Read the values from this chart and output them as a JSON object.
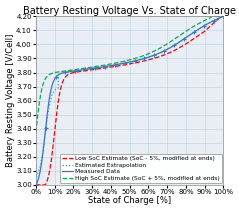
{
  "title": "Battery Resting Voltage Vs. State of Charge",
  "xlabel": "State of Charge [%]",
  "ylabel": "Battery Resting Voltage [V/Cell]",
  "xlim": [
    0,
    1.0
  ],
  "ylim": [
    3.0,
    4.2
  ],
  "yticks": [
    3.0,
    3.1,
    3.2,
    3.3,
    3.4,
    3.5,
    3.6,
    3.7,
    3.8,
    3.9,
    4.0,
    4.1,
    4.2
  ],
  "xticks": [
    0,
    0.1,
    0.2,
    0.3,
    0.4,
    0.5,
    0.6,
    0.7,
    0.8,
    0.9,
    1.0
  ],
  "colors": {
    "measured": "#4472C4",
    "extrapolation": "#00B0F0",
    "high_soc": "#00B050",
    "low_soc": "#FF0000"
  },
  "legend": [
    "Measured Data",
    "Estimated Extrapolation",
    "High SoC Estimate (SoC + 5%, modified at ends)",
    "Low SoC Estimate (SoC - 5%, modified at ends)"
  ],
  "background_color": "#E8EEF4",
  "title_fontsize": 7,
  "label_fontsize": 6,
  "tick_fontsize": 5,
  "legend_fontsize": 4.2
}
